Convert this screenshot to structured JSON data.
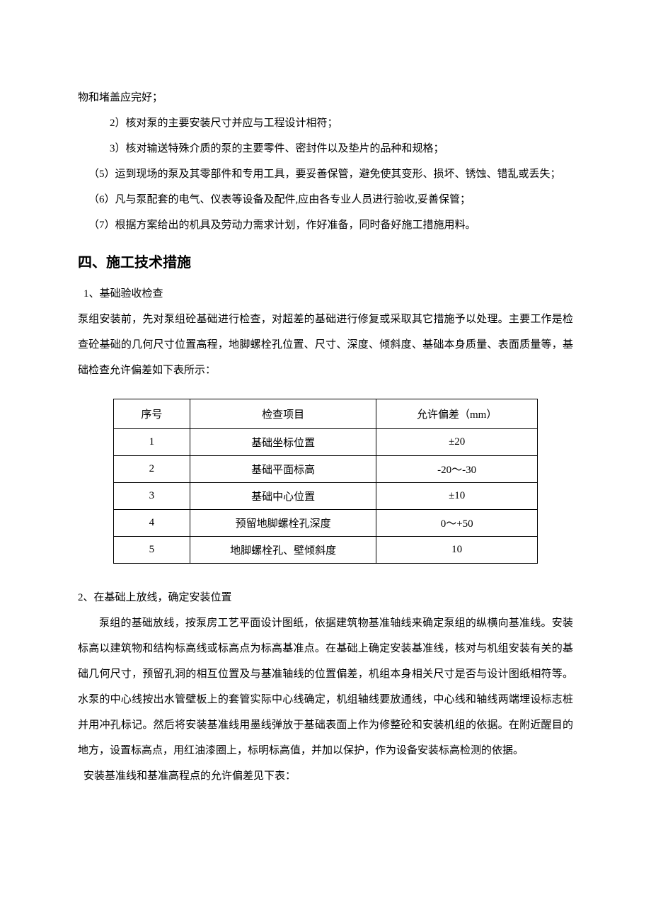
{
  "paragraphs": {
    "p1": "物和堵盖应完好；",
    "p2": "2）核对泵的主要安装尺寸并应与工程设计相符；",
    "p3": "3）核对输送特殊介质的泵的主要零件、密封件以及垫片的品种和规格；",
    "p4": "（5）运到现场的泵及其零部件和专用工具，要妥善保管，避免使其变形、损坏、锈蚀、错乱或丢失；",
    "p5": "（6）凡与泵配套的电气、仪表等设备及配件,应由各专业人员进行验收,妥善保管；",
    "p6": "（7）根据方案给出的机具及劳动力需求计划，作好准备，同时备好施工措施用料。"
  },
  "heading": "四、施工技术措施",
  "subsection1": {
    "title": "1、基础验收检查",
    "body": "泵组安装前，先对泵组砼基础进行检查，对超差的基础进行修复或采取其它措施予以处理。主要工作是检查砼基础的几何尺寸位置高程，地脚螺栓孔位置、尺寸、深度、倾斜度、基础本身质量、表面质量等，基础检查允许偏差如下表所示："
  },
  "table": {
    "headers": {
      "col1": "序号",
      "col2": "检查项目",
      "col3": "允许偏差（mm）"
    },
    "rows": [
      {
        "seq": "1",
        "item": "基础坐标位置",
        "tol": "±20"
      },
      {
        "seq": "2",
        "item": "基础平面标高",
        "tol": "-20～-30"
      },
      {
        "seq": "3",
        "item": "基础中心位置",
        "tol": "±10"
      },
      {
        "seq": "4",
        "item": "预留地脚螺栓孔深度",
        "tol": "0～+50"
      },
      {
        "seq": "5",
        "item": "地脚螺栓孔、壁倾斜度",
        "tol": "10"
      }
    ]
  },
  "subsection2": {
    "title": "2、在基础上放线，确定安装位置",
    "body": "泵组的基础放线，按泵房工艺平面设计图纸，依据建筑物基准轴线来确定泵组的纵横向基准线。安装标高以建筑物和结构标高线或标高点为标高基准点。在基础上确定安装基准线，核对与机组安装有关的基础几何尺寸，预留孔洞的相互位置及与基准轴线的位置偏差，机组本身相关尺寸是否与设计图纸相符等。水泵的中心线按出水管壁板上的套管实际中心线确定，机组轴线要放通线，中心线和轴线两端埋设标志桩并用冲孔标记。然后将安装基准线用墨线弹放于基础表面上作为修整砼和安装机组的依据。在附近醒目的地方，设置标高点，用红油漆圈上，标明标高值，并加以保护，作为设备安装标高检测的依据。",
    "note": "安装基准线和基准高程点的允许偏差见下表："
  }
}
